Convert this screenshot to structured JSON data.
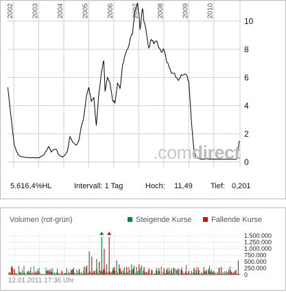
{
  "price_chart": {
    "year_labels": [
      "2002",
      "2003",
      "2004",
      "2005",
      "2006",
      "2007",
      "2008",
      "2009",
      "2010"
    ],
    "y_ticks": [
      "0",
      "2",
      "4",
      "6",
      "8",
      "10"
    ],
    "watermark_prefix": ".com",
    "watermark_suffix": "direct",
    "stats": {
      "change": "5.616,4%HL",
      "interval": "Intervall: 1 Tag",
      "high_label": "Hoch:",
      "high_value": "11,49",
      "low_label": "Tief:",
      "low_value": "0,201"
    }
  },
  "volume_chart": {
    "title": "Volumen (rot-grün)",
    "legend_up": "Steigende Kurse",
    "legend_down": "Fallende Kurse",
    "y_ticks": [
      "0",
      "250.000",
      "500.000",
      "750.000",
      "1.000.000",
      "1.250.000",
      "1.500.000"
    ],
    "timestamp": "12.01.2011 17:36 Uhr"
  },
  "colors": {
    "price_line": "#000000",
    "up": "#1a7a3a",
    "down": "#c01818",
    "grid": "#cfcfcf"
  },
  "chart_data": [
    {
      "type": "line",
      "title": "",
      "xlabel": "",
      "ylabel": "",
      "x_range": [
        2001.75,
        2011.05
      ],
      "ylim": [
        -0.4,
        11.5
      ],
      "grid": true,
      "x": [
        2001.76,
        2001.82,
        2001.88,
        2001.95,
        2002.02,
        2002.1,
        2002.18,
        2002.27,
        2002.4,
        2002.6,
        2002.8,
        2003.0,
        2003.2,
        2003.4,
        2003.5,
        2003.6,
        2003.7,
        2003.8,
        2003.95,
        2004.05,
        2004.15,
        2004.25,
        2004.35,
        2004.5,
        2004.6,
        2004.7,
        2004.8,
        2004.9,
        2005.0,
        2005.05,
        2005.1,
        2005.2,
        2005.3,
        2005.4,
        2005.5,
        2005.6,
        2005.65,
        2005.75,
        2005.85,
        2005.95,
        2006.05,
        2006.15,
        2006.25,
        2006.35,
        2006.45,
        2006.55,
        2006.65,
        2006.75,
        2006.85,
        2006.95,
        2007.0,
        2007.05,
        2007.1,
        2007.15,
        2007.2,
        2007.3,
        2007.4,
        2007.5,
        2007.6,
        2007.7,
        2007.8,
        2007.9,
        2008.0,
        2008.1,
        2008.2,
        2008.3,
        2008.4,
        2008.5,
        2008.6,
        2008.7,
        2008.8,
        2008.9,
        2009.0,
        2009.1,
        2009.2,
        2009.3,
        2009.4,
        2009.5,
        2009.6,
        2009.7,
        2009.8,
        2009.9,
        2010.0,
        2010.05,
        2010.1,
        2010.15,
        2010.2,
        2010.25,
        2010.3,
        2010.4,
        2010.5,
        2010.6,
        2010.7,
        2010.8,
        2010.9,
        2010.96,
        2011.02
      ],
      "series": [
        {
          "values": [
            5.3,
            4.3,
            3.4,
            2.2,
            1.2,
            0.8,
            0.5,
            0.4,
            0.35,
            0.3,
            0.3,
            0.3,
            0.5,
            1.1,
            0.7,
            0.9,
            0.9,
            0.5,
            0.35,
            0.5,
            0.8,
            1.8,
            1.4,
            1.2,
            1.5,
            2.5,
            3.2,
            4.6,
            5.3,
            4.8,
            4.3,
            4.6,
            2.6,
            4.8,
            6.3,
            7.2,
            5.0,
            6.0,
            5.6,
            4.4,
            4.2,
            5.6,
            5.2,
            6.9,
            7.6,
            8.0,
            8.7,
            9.1,
            10.8,
            11.3,
            10.6,
            9.4,
            10.2,
            10.9,
            10.0,
            9.2,
            8.1,
            8.7,
            8.4,
            8.6,
            8.1,
            7.8,
            8.0,
            7.2,
            6.8,
            6.3,
            6.3,
            6.0,
            5.8,
            6.2,
            6.2,
            6.2,
            5.7,
            3.0,
            0.9,
            0.3,
            0.25,
            0.2,
            0.2,
            0.25,
            0.2,
            0.22,
            0.2,
            0.2,
            0.2,
            0.2,
            0.2,
            0.2,
            0.2,
            0.2,
            0.2,
            0.2,
            0.2,
            0.2,
            0.2,
            0.6,
            1.5
          ]
        }
      ]
    },
    {
      "type": "bar",
      "title": "Volumen (rot-grün)",
      "x_range": [
        2001.75,
        2011.05
      ],
      "ylim": [
        0,
        1500000
      ],
      "legend": [
        "Steigende Kurse",
        "Fallende Kurse"
      ],
      "legend_position": "top-right",
      "series": [
        {
          "name": "Steigende Kurse",
          "x": [
            2001.9,
            2002.2,
            2002.6,
            2003.3,
            2003.7,
            2004.1,
            2004.5,
            2004.8,
            2005.0,
            2005.3,
            2005.5,
            2005.7,
            2005.95,
            2006.1,
            2006.4,
            2006.7,
            2006.9,
            2007.1,
            2007.4,
            2007.7,
            2008.0,
            2008.3,
            2008.6,
            2009.0,
            2009.3,
            2009.6,
            2009.9,
            2010.2,
            2010.5,
            2010.8,
            2010.98
          ],
          "values": [
            350000,
            120000,
            80000,
            160000,
            90000,
            250000,
            200000,
            300000,
            900000,
            600000,
            1450000,
            400000,
            200000,
            550000,
            250000,
            400000,
            300000,
            350000,
            250000,
            200000,
            250000,
            180000,
            220000,
            150000,
            120000,
            300000,
            200000,
            250000,
            150000,
            120000,
            550000
          ]
        },
        {
          "name": "Fallende Kurse",
          "x": [
            2002.0,
            2002.4,
            2002.9,
            2003.5,
            2003.9,
            2004.3,
            2004.6,
            2004.9,
            2005.1,
            2005.4,
            2005.6,
            2005.8,
            2006.0,
            2006.2,
            2006.5,
            2006.8,
            2007.0,
            2007.2,
            2007.5,
            2007.8,
            2008.1,
            2008.4,
            2008.7,
            2009.1,
            2009.4,
            2009.7,
            2010.0,
            2010.3,
            2010.6,
            2010.85
          ],
          "values": [
            200000,
            90000,
            70000,
            120000,
            150000,
            180000,
            220000,
            350000,
            700000,
            500000,
            1000000,
            1450000,
            300000,
            400000,
            300000,
            350000,
            400000,
            300000,
            200000,
            250000,
            200000,
            250000,
            200000,
            150000,
            180000,
            200000,
            150000,
            300000,
            200000,
            120000
          ]
        }
      ]
    }
  ]
}
